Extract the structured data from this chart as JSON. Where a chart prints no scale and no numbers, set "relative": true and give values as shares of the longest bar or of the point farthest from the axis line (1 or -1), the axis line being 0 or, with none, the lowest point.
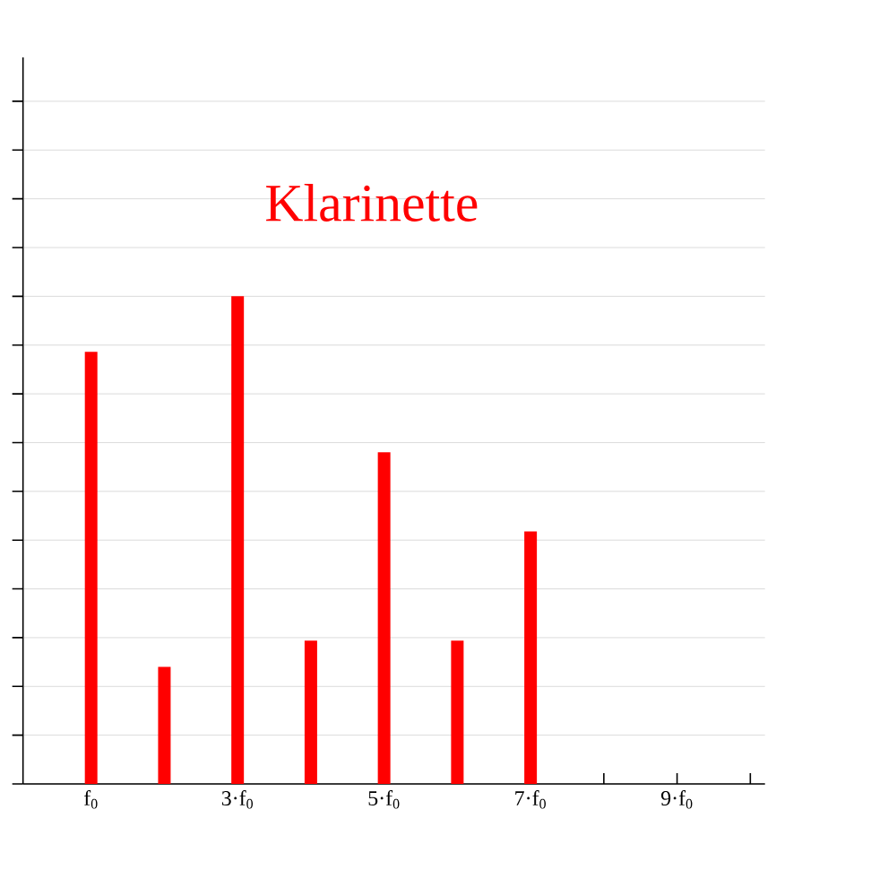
{
  "chart_data": {
    "type": "bar",
    "title": "Klarinette",
    "categories": [
      "f$_{0}$",
      null,
      "3·f$_{0}$",
      null,
      "5·f$_{0}$",
      null,
      "7·f$_{0}$",
      null,
      "9·f$_{0}$",
      null
    ],
    "values": [
      0.886,
      0.24,
      1,
      0.294,
      0.68,
      0.294,
      0.518,
      0,
      0,
      0
    ],
    "color": "#ff0000",
    "relative": true,
    "grid": "y"
  }
}
